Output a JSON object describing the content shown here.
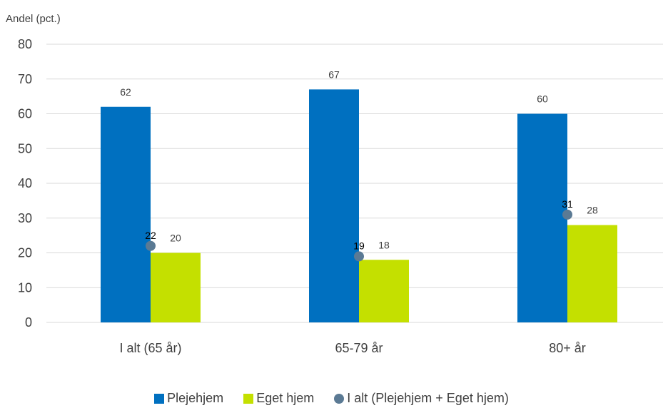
{
  "chart_data": {
    "type": "bar",
    "ylabel": "Andel (pct.)",
    "ylim": [
      0,
      80
    ],
    "yticks": [
      0,
      10,
      20,
      30,
      40,
      50,
      60,
      70,
      80
    ],
    "grid": true,
    "categories": [
      "I alt (65 år)",
      "65-79 år",
      "80+ år"
    ],
    "series": [
      {
        "name": "Plejehjem",
        "kind": "bar",
        "color": "#0070C0",
        "values": [
          62,
          67,
          60
        ],
        "labels": [
          "62",
          "67",
          "60"
        ]
      },
      {
        "name": "Eget hjem",
        "kind": "bar",
        "color": "#C4E000",
        "values": [
          20,
          18,
          28
        ],
        "labels": [
          "20",
          "18",
          "28"
        ]
      },
      {
        "name": "I alt (Plejehjem + Eget hjem)",
        "kind": "marker",
        "color": "#5B7A94",
        "values": [
          22,
          19,
          31
        ],
        "labels": [
          "22",
          "19",
          "31"
        ]
      }
    ],
    "legend_position": "bottom"
  }
}
